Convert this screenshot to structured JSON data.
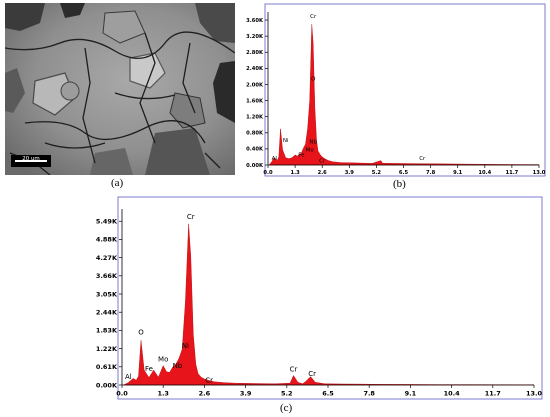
{
  "panel_labels": {
    "a": "(a)",
    "b": "(b)",
    "c": "(c)"
  },
  "sem": {
    "scale_bar_label": "20 um"
  },
  "colors": {
    "spectrum_fill": "#e8141b",
    "frame": "#7b7bd1",
    "axis": "#000000"
  },
  "chart_data": [
    {
      "id": "b",
      "type": "area",
      "title": "",
      "xlabel": "",
      "ylabel": "",
      "xlim": [
        0.0,
        13.0
      ],
      "ylim": [
        0,
        3800
      ],
      "x_ticks": [
        "0.0",
        "1.3",
        "2.6",
        "3.9",
        "5.2",
        "6.5",
        "7.8",
        "9.1",
        "10.4",
        "11.7",
        "13.0"
      ],
      "x_tick_values": [
        0,
        1.3,
        2.6,
        3.9,
        5.2,
        6.5,
        7.8,
        9.1,
        10.4,
        11.7,
        13.0
      ],
      "y_ticks": [
        "0.00K",
        "0.40K",
        "0.80K",
        "1.20K",
        "1.60K",
        "2.00K",
        "2.40K",
        "2.80K",
        "3.20K",
        "3.60K"
      ],
      "y_tick_values": [
        0,
        400,
        800,
        1200,
        1600,
        2000,
        2400,
        2800,
        3200,
        3600
      ],
      "series": [
        {
          "x": [
            0.05,
            0.15,
            0.3,
            0.45,
            0.52,
            0.6,
            0.7,
            0.85,
            1.0,
            1.15,
            1.3,
            1.4,
            1.5,
            1.6,
            1.7,
            1.8,
            1.9,
            2.0,
            2.1,
            2.17,
            2.25,
            2.33,
            2.4,
            2.5,
            2.6,
            2.75,
            2.9,
            3.1,
            3.5,
            4.0,
            5.0,
            5.41,
            5.5,
            6.0,
            6.5,
            7.0,
            7.5,
            8.0,
            9.0,
            10.0,
            11.0,
            12.0,
            13.0
          ],
          "y": [
            0,
            60,
            180,
            120,
            200,
            900,
            380,
            180,
            160,
            180,
            250,
            220,
            260,
            300,
            420,
            520,
            900,
            1600,
            3500,
            3000,
            1400,
            600,
            350,
            260,
            200,
            150,
            110,
            80,
            60,
            55,
            40,
            110,
            45,
            40,
            38,
            35,
            32,
            30,
            25,
            20,
            15,
            12,
            10
          ]
        }
      ],
      "peak_labels": [
        {
          "text": "Cr",
          "x": 2.17,
          "y": 3600
        },
        {
          "text": "O",
          "x": 2.17,
          "y": 2050
        },
        {
          "text": "Ni",
          "x": 0.85,
          "y": 520
        },
        {
          "text": "Nb",
          "x": 2.17,
          "y": 480
        },
        {
          "text": "Mo",
          "x": 2.0,
          "y": 280
        },
        {
          "text": "Fe",
          "x": 1.6,
          "y": 160
        },
        {
          "text": "Al",
          "x": 0.3,
          "y": 70
        },
        {
          "text": "Cr",
          "x": 2.6,
          "y": 10
        },
        {
          "text": "Cr",
          "x": 7.4,
          "y": 80
        }
      ]
    },
    {
      "id": "c",
      "type": "area",
      "title": "",
      "xlabel": "",
      "ylabel": "",
      "xlim": [
        0.0,
        13.0
      ],
      "ylim": [
        0,
        5900
      ],
      "x_ticks": [
        "0.0",
        "1.3",
        "2.6",
        "3.9",
        "5.2",
        "6.5",
        "7.8",
        "9.1",
        "10.4",
        "11.7",
        "13.0"
      ],
      "x_tick_values": [
        0,
        1.3,
        2.6,
        3.9,
        5.2,
        6.5,
        7.8,
        9.1,
        10.4,
        11.7,
        13.0
      ],
      "y_ticks": [
        "0.00K",
        "0.61K",
        "1.22K",
        "1.83K",
        "2.44K",
        "3.05K",
        "3.66K",
        "4.27K",
        "4.88K",
        "5.49K"
      ],
      "y_tick_values": [
        0,
        610,
        1220,
        1830,
        2440,
        3050,
        3660,
        4270,
        4880,
        5490
      ],
      "series": [
        {
          "x": [
            0.05,
            0.2,
            0.35,
            0.45,
            0.52,
            0.6,
            0.7,
            0.85,
            1.0,
            1.15,
            1.3,
            1.4,
            1.5,
            1.6,
            1.7,
            1.8,
            1.9,
            2.0,
            2.1,
            2.17,
            2.25,
            2.33,
            2.4,
            2.5,
            2.6,
            2.75,
            2.9,
            3.2,
            3.6,
            4.0,
            4.8,
            5.3,
            5.41,
            5.55,
            5.7,
            5.8,
            5.95,
            6.1,
            6.4,
            7.0,
            7.5,
            8.0,
            9.0,
            10.0,
            11.0,
            12.0,
            13.0
          ],
          "y": [
            0,
            80,
            220,
            160,
            300,
            1500,
            500,
            250,
            500,
            260,
            650,
            450,
            420,
            600,
            700,
            900,
            1200,
            2800,
            5400,
            4300,
            1700,
            700,
            380,
            260,
            200,
            150,
            110,
            80,
            60,
            55,
            40,
            60,
            320,
            90,
            40,
            120,
            280,
            90,
            40,
            35,
            30,
            25,
            20,
            15,
            12,
            10,
            8
          ]
        }
      ],
      "peak_labels": [
        {
          "text": "Cr",
          "x": 2.17,
          "y": 5500
        },
        {
          "text": "O",
          "x": 0.6,
          "y": 1620
        },
        {
          "text": "Ni",
          "x": 2.0,
          "y": 1170
        },
        {
          "text": "Mo",
          "x": 1.3,
          "y": 720
        },
        {
          "text": "Nb",
          "x": 1.75,
          "y": 500
        },
        {
          "text": "Fe",
          "x": 0.85,
          "y": 400
        },
        {
          "text": "Al",
          "x": 0.2,
          "y": 130
        },
        {
          "text": "Cr",
          "x": 2.75,
          "y": 20
        },
        {
          "text": "Cr",
          "x": 5.41,
          "y": 380
        },
        {
          "text": "Cr",
          "x": 6.0,
          "y": 240
        }
      ]
    }
  ]
}
